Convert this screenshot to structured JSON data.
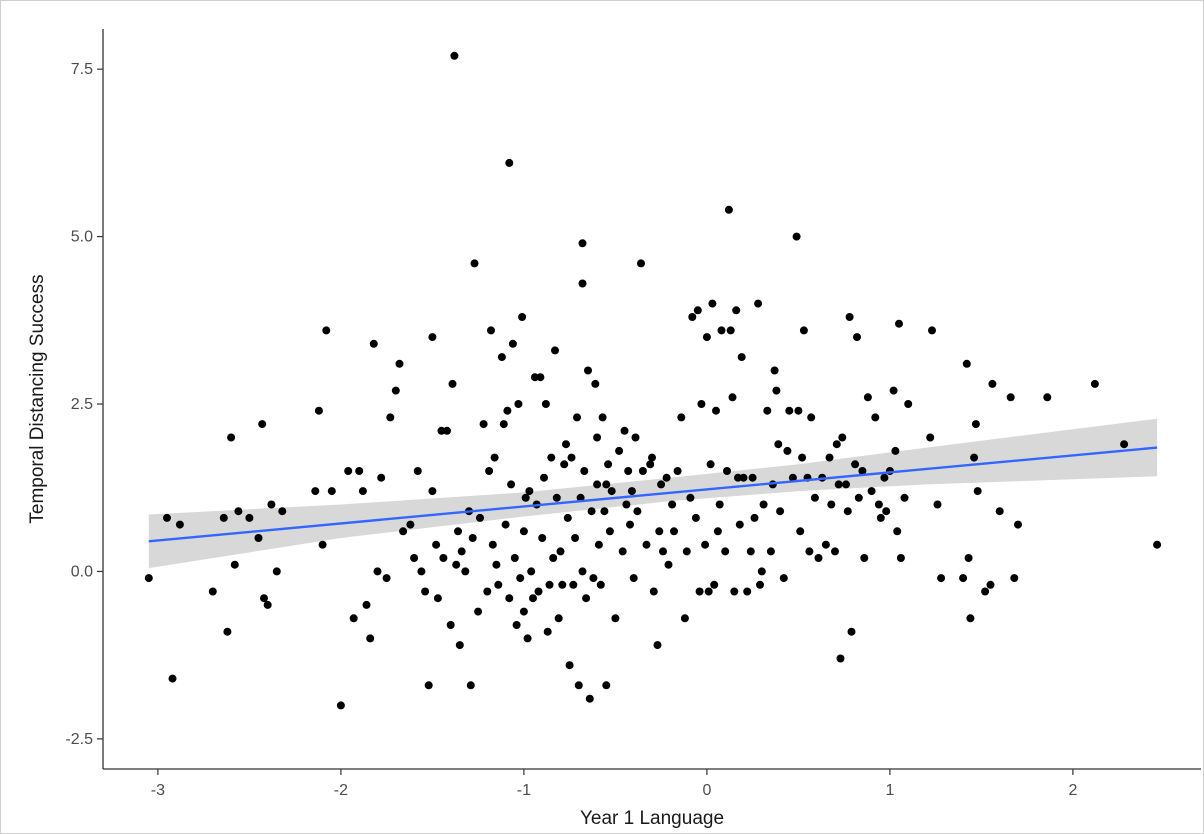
{
  "chart_data": {
    "type": "scatter",
    "title": "",
    "xlabel": "Year 1 Language",
    "ylabel": "Temporal Distancing Success",
    "xlim": [
      -3.3,
      2.7
    ],
    "ylim": [
      -2.95,
      8.1
    ],
    "x_ticks": [
      -3,
      -2,
      -1,
      0,
      1,
      2
    ],
    "x_tick_labels": [
      "-3",
      "-2",
      "-1",
      "0",
      "1",
      "2"
    ],
    "y_ticks": [
      -2.5,
      0,
      2.5,
      5,
      7.5
    ],
    "y_tick_labels": [
      "-2.5",
      "0.0",
      "2.5",
      "5.0",
      "7.5"
    ],
    "grid": false,
    "legend": "none",
    "point_color": "#000000",
    "fit_color": "#3366ff",
    "band_color": "#bebebe",
    "points": [
      [
        -3.05,
        -0.1
      ],
      [
        -2.95,
        0.8
      ],
      [
        -2.92,
        -1.6
      ],
      [
        -2.88,
        0.7
      ],
      [
        -2.7,
        -0.3
      ],
      [
        -2.64,
        0.8
      ],
      [
        -2.62,
        -0.9
      ],
      [
        -2.6,
        2.0
      ],
      [
        -2.58,
        0.1
      ],
      [
        -2.56,
        0.9
      ],
      [
        -2.5,
        0.8
      ],
      [
        -2.45,
        0.5
      ],
      [
        -2.43,
        2.2
      ],
      [
        -2.42,
        -0.4
      ],
      [
        -2.4,
        -0.5
      ],
      [
        -2.38,
        1.0
      ],
      [
        -2.35,
        0.0
      ],
      [
        -2.32,
        0.9
      ],
      [
        -2.14,
        1.2
      ],
      [
        -2.12,
        2.4
      ],
      [
        -2.1,
        0.4
      ],
      [
        -2.08,
        3.6
      ],
      [
        -2.0,
        -2.0
      ],
      [
        -1.96,
        1.5
      ],
      [
        -1.93,
        -0.7
      ],
      [
        -1.9,
        1.5
      ],
      [
        -1.88,
        1.2
      ],
      [
        -1.86,
        -0.5
      ],
      [
        -1.84,
        -1.0
      ],
      [
        -1.82,
        3.4
      ],
      [
        -1.8,
        0.0
      ],
      [
        -1.78,
        1.4
      ],
      [
        -1.75,
        -0.1
      ],
      [
        -1.73,
        2.3
      ],
      [
        -1.7,
        2.7
      ],
      [
        -1.68,
        3.1
      ],
      [
        -1.66,
        0.6
      ],
      [
        -1.62,
        0.7
      ],
      [
        -1.58,
        1.5
      ],
      [
        -1.56,
        0.0
      ],
      [
        -1.54,
        -0.3
      ],
      [
        -1.52,
        -1.7
      ],
      [
        -1.5,
        1.2
      ],
      [
        -1.5,
        3.5
      ],
      [
        -1.48,
        0.4
      ],
      [
        -1.47,
        -0.4
      ],
      [
        -1.45,
        2.1
      ],
      [
        -1.44,
        0.2
      ],
      [
        -1.42,
        2.1
      ],
      [
        -1.4,
        -0.8
      ],
      [
        -1.39,
        2.8
      ],
      [
        -1.37,
        0.1
      ],
      [
        -1.36,
        0.6
      ],
      [
        -1.35,
        -1.1
      ],
      [
        -1.34,
        0.3
      ],
      [
        -1.32,
        0.0
      ],
      [
        -1.3,
        0.9
      ],
      [
        -1.29,
        -1.7
      ],
      [
        -1.28,
        0.5
      ],
      [
        -1.27,
        4.6
      ],
      [
        -1.25,
        -0.6
      ],
      [
        -1.24,
        0.8
      ],
      [
        -1.22,
        2.2
      ],
      [
        -1.2,
        -0.3
      ],
      [
        -1.19,
        1.5
      ],
      [
        -1.18,
        3.6
      ],
      [
        -1.17,
        0.4
      ],
      [
        -1.16,
        1.7
      ],
      [
        -1.15,
        0.1
      ],
      [
        -1.14,
        -0.2
      ],
      [
        -1.12,
        3.2
      ],
      [
        -1.11,
        2.2
      ],
      [
        -1.1,
        0.7
      ],
      [
        -1.09,
        2.4
      ],
      [
        -1.08,
        -0.4
      ],
      [
        -1.07,
        1.3
      ],
      [
        -1.06,
        3.4
      ],
      [
        -1.05,
        0.2
      ],
      [
        -1.04,
        -0.8
      ],
      [
        -1.03,
        2.5
      ],
      [
        -1.02,
        -0.1
      ],
      [
        -1.01,
        3.8
      ],
      [
        -1.0,
        0.6
      ],
      [
        -0.99,
        1.1
      ],
      [
        -0.98,
        -1.0
      ],
      [
        -0.97,
        1.2
      ],
      [
        -0.96,
        0.0
      ],
      [
        -0.95,
        -0.4
      ],
      [
        -0.94,
        2.9
      ],
      [
        -0.93,
        1.0
      ],
      [
        -0.92,
        -0.3
      ],
      [
        -0.91,
        2.9
      ],
      [
        -0.9,
        0.5
      ],
      [
        -0.89,
        1.4
      ],
      [
        -0.88,
        2.5
      ],
      [
        -0.87,
        -0.9
      ],
      [
        -0.86,
        -0.2
      ],
      [
        -0.85,
        1.7
      ],
      [
        -0.84,
        0.2
      ],
      [
        -0.83,
        3.3
      ],
      [
        -0.82,
        1.1
      ],
      [
        -0.81,
        -0.7
      ],
      [
        -0.8,
        0.3
      ],
      [
        -0.79,
        -0.2
      ],
      [
        -0.78,
        1.6
      ],
      [
        -0.77,
        1.9
      ],
      [
        -0.76,
        0.8
      ],
      [
        -0.75,
        -1.4
      ],
      [
        -0.74,
        1.7
      ],
      [
        -0.73,
        -0.2
      ],
      [
        -0.72,
        0.5
      ],
      [
        -0.71,
        2.3
      ],
      [
        -0.7,
        -1.7
      ],
      [
        -0.69,
        1.1
      ],
      [
        -0.68,
        0.0
      ],
      [
        -0.67,
        1.5
      ],
      [
        -0.66,
        -0.4
      ],
      [
        -0.65,
        3.0
      ],
      [
        -0.64,
        -1.9
      ],
      [
        -0.63,
        0.9
      ],
      [
        -0.62,
        -0.1
      ],
      [
        -0.61,
        2.8
      ],
      [
        -0.6,
        1.3
      ],
      [
        -0.59,
        0.4
      ],
      [
        -0.58,
        -0.2
      ],
      [
        -0.57,
        2.3
      ],
      [
        -0.56,
        0.9
      ],
      [
        -0.55,
        -1.7
      ],
      [
        -0.54,
        1.6
      ],
      [
        -0.53,
        0.6
      ],
      [
        -0.52,
        1.2
      ],
      [
        -0.5,
        -0.7
      ],
      [
        -0.48,
        1.8
      ],
      [
        -0.46,
        0.3
      ],
      [
        -0.45,
        2.1
      ],
      [
        -0.44,
        1.0
      ],
      [
        -0.43,
        1.5
      ],
      [
        -0.42,
        0.7
      ],
      [
        -0.41,
        1.2
      ],
      [
        -0.4,
        -0.1
      ],
      [
        -0.39,
        2.0
      ],
      [
        -0.38,
        0.9
      ],
      [
        -0.36,
        4.6
      ],
      [
        -0.35,
        1.5
      ],
      [
        -0.33,
        0.4
      ],
      [
        -0.31,
        1.6
      ],
      [
        -0.29,
        -0.3
      ],
      [
        -0.27,
        -1.1
      ],
      [
        -0.26,
        0.6
      ],
      [
        -0.25,
        1.3
      ],
      [
        -0.24,
        0.3
      ],
      [
        -0.22,
        1.4
      ],
      [
        -0.21,
        0.1
      ],
      [
        -0.19,
        1.0
      ],
      [
        -0.18,
        0.6
      ],
      [
        -0.16,
        1.5
      ],
      [
        -0.14,
        2.3
      ],
      [
        -0.12,
        -0.7
      ],
      [
        -0.11,
        0.3
      ],
      [
        -0.09,
        1.1
      ],
      [
        -0.08,
        3.8
      ],
      [
        -0.06,
        0.8
      ],
      [
        -0.05,
        3.9
      ],
      [
        -0.04,
        -0.3
      ],
      [
        -0.03,
        2.5
      ],
      [
        -0.01,
        0.4
      ],
      [
        0.0,
        3.5
      ],
      [
        0.01,
        -0.3
      ],
      [
        0.02,
        1.6
      ],
      [
        0.03,
        4.0
      ],
      [
        0.04,
        -0.2
      ],
      [
        0.05,
        2.4
      ],
      [
        0.06,
        0.6
      ],
      [
        0.07,
        1.0
      ],
      [
        0.08,
        3.6
      ],
      [
        0.1,
        0.3
      ],
      [
        0.11,
        1.5
      ],
      [
        0.12,
        5.4
      ],
      [
        0.13,
        3.6
      ],
      [
        0.14,
        2.6
      ],
      [
        0.15,
        -0.3
      ],
      [
        0.16,
        3.9
      ],
      [
        0.17,
        1.4
      ],
      [
        0.18,
        0.7
      ],
      [
        0.19,
        3.2
      ],
      [
        0.2,
        1.4
      ],
      [
        0.22,
        -0.3
      ],
      [
        0.24,
        0.3
      ],
      [
        0.25,
        1.4
      ],
      [
        0.26,
        0.8
      ],
      [
        0.28,
        4.0
      ],
      [
        0.29,
        -0.2
      ],
      [
        0.31,
        1.0
      ],
      [
        0.33,
        2.4
      ],
      [
        0.35,
        0.3
      ],
      [
        0.36,
        1.3
      ],
      [
        0.37,
        3.0
      ],
      [
        0.38,
        2.7
      ],
      [
        0.39,
        1.9
      ],
      [
        0.4,
        0.9
      ],
      [
        0.42,
        -0.1
      ],
      [
        0.44,
        1.8
      ],
      [
        0.45,
        2.4
      ],
      [
        0.47,
        1.4
      ],
      [
        0.49,
        5.0
      ],
      [
        0.5,
        2.4
      ],
      [
        0.51,
        0.6
      ],
      [
        0.52,
        1.7
      ],
      [
        0.53,
        3.6
      ],
      [
        0.55,
        1.4
      ],
      [
        0.56,
        0.3
      ],
      [
        0.57,
        2.3
      ],
      [
        0.59,
        1.1
      ],
      [
        0.61,
        0.2
      ],
      [
        0.63,
        1.4
      ],
      [
        0.65,
        0.4
      ],
      [
        0.67,
        1.7
      ],
      [
        0.68,
        1.0
      ],
      [
        0.7,
        0.3
      ],
      [
        0.71,
        1.9
      ],
      [
        0.72,
        1.3
      ],
      [
        0.73,
        -1.3
      ],
      [
        0.74,
        2.0
      ],
      [
        0.76,
        1.3
      ],
      [
        0.77,
        0.9
      ],
      [
        0.78,
        3.8
      ],
      [
        0.79,
        -0.9
      ],
      [
        0.81,
        1.6
      ],
      [
        0.82,
        3.5
      ],
      [
        0.83,
        1.1
      ],
      [
        0.85,
        1.5
      ],
      [
        0.86,
        0.2
      ],
      [
        0.88,
        2.6
      ],
      [
        0.9,
        1.2
      ],
      [
        0.92,
        2.3
      ],
      [
        0.94,
        1.0
      ],
      [
        0.95,
        0.8
      ],
      [
        0.97,
        1.4
      ],
      [
        0.98,
        0.9
      ],
      [
        1.0,
        1.5
      ],
      [
        1.02,
        2.7
      ],
      [
        1.03,
        1.8
      ],
      [
        1.04,
        0.6
      ],
      [
        1.05,
        3.7
      ],
      [
        1.06,
        0.2
      ],
      [
        1.08,
        1.1
      ],
      [
        1.1,
        2.5
      ],
      [
        1.22,
        2.0
      ],
      [
        1.23,
        3.6
      ],
      [
        1.26,
        1.0
      ],
      [
        1.28,
        -0.1
      ],
      [
        1.4,
        -0.1
      ],
      [
        1.42,
        3.1
      ],
      [
        1.43,
        0.2
      ],
      [
        1.44,
        -0.7
      ],
      [
        1.46,
        1.7
      ],
      [
        1.47,
        2.2
      ],
      [
        1.48,
        1.2
      ],
      [
        1.52,
        -0.3
      ],
      [
        1.55,
        -0.2
      ],
      [
        1.56,
        2.8
      ],
      [
        1.6,
        0.9
      ],
      [
        1.66,
        2.6
      ],
      [
        1.68,
        -0.1
      ],
      [
        1.7,
        0.7
      ],
      [
        1.86,
        2.6
      ],
      [
        2.12,
        2.8
      ],
      [
        2.28,
        1.9
      ],
      [
        2.46,
        0.4
      ],
      [
        -1.38,
        7.7
      ],
      [
        -1.08,
        6.1
      ],
      [
        -0.68,
        4.9
      ],
      [
        -0.68,
        4.3
      ],
      [
        -0.55,
        1.3
      ],
      [
        -0.6,
        2.0
      ],
      [
        -0.3,
        1.7
      ],
      [
        0.3,
        0.0
      ],
      [
        -1.0,
        -0.6
      ],
      [
        -1.6,
        0.2
      ],
      [
        -2.05,
        1.2
      ]
    ],
    "fit_line": {
      "x": [
        -3.05,
        2.46
      ],
      "y": [
        0.45,
        1.85
      ]
    },
    "confidence_band": {
      "x": [
        -3.05,
        -2.0,
        -1.0,
        -0.2,
        0.5,
        1.2,
        2.46
      ],
      "lower": [
        0.05,
        0.5,
        0.82,
        1.05,
        1.2,
        1.3,
        1.42
      ],
      "upper": [
        0.85,
        1.0,
        1.18,
        1.4,
        1.6,
        1.85,
        2.28
      ]
    }
  }
}
